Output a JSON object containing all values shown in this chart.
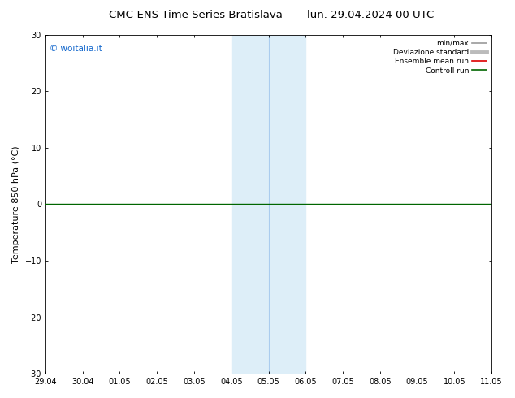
{
  "title_left": "CMC-ENS Time Series Bratislava",
  "title_right": "lun. 29.04.2024 00 UTC",
  "ylabel": "Temperature 850 hPa (°C)",
  "xlim_dates": [
    "29.04",
    "30.04",
    "01.05",
    "02.05",
    "03.05",
    "04.05",
    "05.05",
    "06.05",
    "07.05",
    "08.05",
    "09.05",
    "10.05",
    "11.05"
  ],
  "xlim": [
    0,
    12
  ],
  "ylim": [
    -30,
    30
  ],
  "yticks": [
    -30,
    -20,
    -10,
    0,
    10,
    20,
    30
  ],
  "hline_y": 0,
  "shade_band1_start": 5,
  "shade_band1_end": 6,
  "shade_band2_start": 6,
  "shade_band2_end": 7,
  "shade_color_light": "#ddeef8",
  "shade_color_mid": "#cce3f5",
  "divider_x": 6,
  "watermark": "© woitalia.it",
  "watermark_color": "#1166cc",
  "legend_items": [
    {
      "label": "min/max",
      "color": "#999999",
      "lw": 1.2
    },
    {
      "label": "Deviazione standard",
      "color": "#bbbbbb",
      "lw": 3.5
    },
    {
      "label": "Ensemble mean run",
      "color": "#dd0000",
      "lw": 1.2
    },
    {
      "label": "Controll run",
      "color": "#006600",
      "lw": 1.2
    }
  ],
  "green_line_color": "#006600",
  "bg_color": "#ffffff",
  "title_fontsize": 9.5,
  "tick_fontsize": 7,
  "ylabel_fontsize": 8,
  "watermark_fontsize": 7.5,
  "legend_fontsize": 6.5
}
